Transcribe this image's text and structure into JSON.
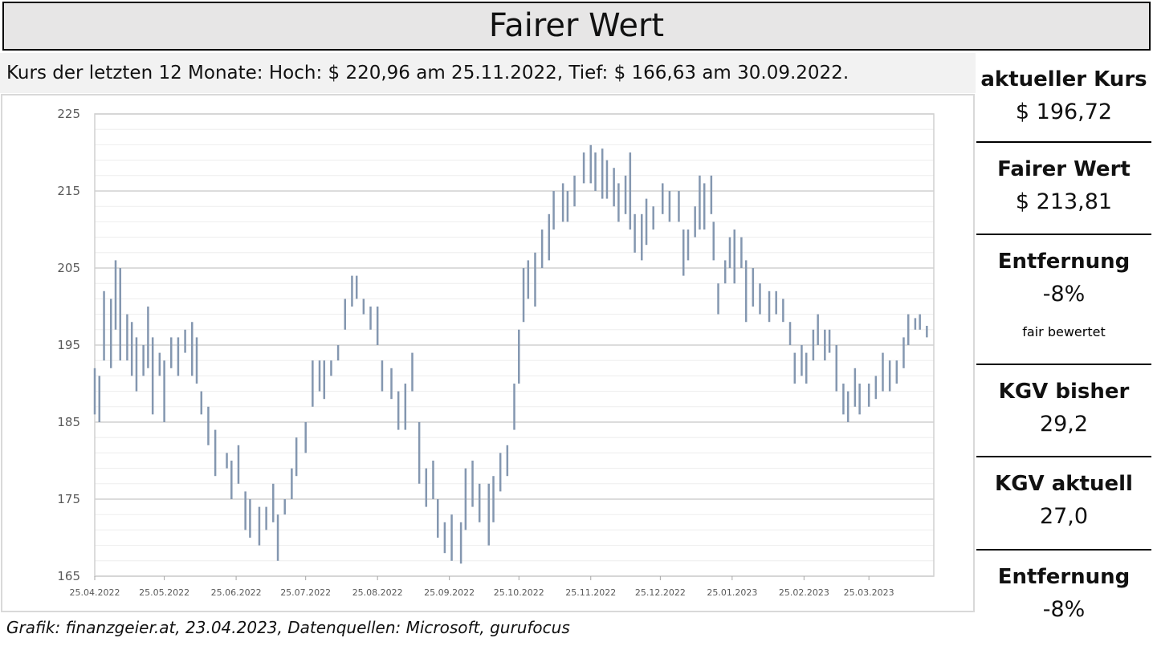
{
  "header": {
    "title": "Fairer Wert"
  },
  "chart_data": {
    "type": "range_bar",
    "subtitle": "Kurs der letzten 12 Monate: Hoch: $ 220,96 am 25.11.2022, Tief: $ 166,63 am 30.09.2022.",
    "caption": "Grafik: finanzgeier.at, 23.04.2023, Datenquellen: Microsoft, gurufocus",
    "color": "#8497b0",
    "x": [
      "25.04.2022",
      "27.04.2022",
      "29.04.2022",
      "02.05.2022",
      "04.05.2022",
      "06.05.2022",
      "09.05.2022",
      "11.05.2022",
      "13.05.2022",
      "16.05.2022",
      "18.05.2022",
      "20.05.2022",
      "23.05.2022",
      "25.05.2022",
      "28.05.2022",
      "31.05.2022",
      "03.06.2022",
      "06.06.2022",
      "08.06.2022",
      "10.06.2022",
      "13.06.2022",
      "16.06.2022",
      "21.06.2022",
      "23.06.2022",
      "26.06.2022",
      "29.06.2022",
      "01.07.2022",
      "05.07.2022",
      "08.07.2022",
      "11.07.2022",
      "13.07.2022",
      "16.07.2022",
      "19.07.2022",
      "21.07.2022",
      "25.07.2022",
      "28.07.2022",
      "31.07.2022",
      "02.08.2022",
      "05.08.2022",
      "08.08.2022",
      "11.08.2022",
      "14.08.2022",
      "16.08.2022",
      "19.08.2022",
      "22.08.2022",
      "25.08.2022",
      "27.08.2022",
      "31.08.2022",
      "03.09.2022",
      "06.09.2022",
      "09.09.2022",
      "12.09.2022",
      "15.09.2022",
      "18.09.2022",
      "20.09.2022",
      "23.09.2022",
      "26.09.2022",
      "30.09.2022",
      "02.10.2022",
      "05.10.2022",
      "08.10.2022",
      "12.10.2022",
      "14.10.2022",
      "17.10.2022",
      "20.10.2022",
      "23.10.2022",
      "25.10.2022",
      "27.10.2022",
      "29.10.2022",
      "01.11.2022",
      "04.11.2022",
      "07.11.2022",
      "09.11.2022",
      "13.11.2022",
      "15.11.2022",
      "18.11.2022",
      "22.11.2022",
      "25.11.2022",
      "27.11.2022",
      "30.11.2022",
      "02.12.2022",
      "05.12.2022",
      "07.12.2022",
      "10.12.2022",
      "12.12.2022",
      "14.12.2022",
      "17.12.2022",
      "19.12.2022",
      "22.12.2022",
      "26.12.2022",
      "29.12.2022",
      "02.01.2023",
      "04.01.2023",
      "06.01.2023",
      "09.01.2023",
      "11.01.2023",
      "13.01.2023",
      "16.01.2023",
      "17.01.2023",
      "19.01.2023",
      "22.01.2023",
      "24.01.2023",
      "26.01.2023",
      "29.01.2023",
      "31.01.2023",
      "03.02.2023",
      "06.02.2023",
      "10.02.2023",
      "13.02.2023",
      "16.02.2023",
      "19.02.2023",
      "21.02.2023",
      "24.02.2023",
      "26.02.2023",
      "01.03.2023",
      "03.03.2023",
      "06.03.2023",
      "08.03.2023",
      "11.03.2023",
      "14.03.2023",
      "16.03.2023",
      "19.03.2023",
      "21.03.2023",
      "25.03.2023",
      "28.03.2023",
      "31.03.2023",
      "03.04.2023",
      "06.04.2023",
      "09.04.2023",
      "11.04.2023",
      "14.04.2023",
      "16.04.2023",
      "19.04.2023"
    ],
    "low": [
      186,
      185,
      193,
      192,
      197,
      193,
      193,
      191,
      189,
      191,
      192,
      186,
      191,
      185,
      192,
      191,
      194,
      191,
      190,
      186,
      182,
      178,
      179,
      175,
      177,
      171,
      170,
      169,
      171,
      172,
      167,
      173,
      175,
      178,
      181,
      187,
      189,
      188,
      191,
      193,
      197,
      200,
      201,
      199,
      197,
      195,
      189,
      188,
      184,
      184,
      189,
      177,
      174,
      175,
      170,
      168,
      167,
      166.63,
      171,
      174,
      172,
      169,
      172,
      176,
      178,
      184,
      190,
      198,
      201,
      200,
      205,
      206,
      210,
      211,
      211,
      213,
      216,
      216,
      215,
      214,
      214,
      213,
      211,
      212,
      210,
      207,
      206,
      208,
      210,
      212,
      211,
      211,
      204,
      206,
      209,
      210,
      210,
      212,
      206,
      199,
      203,
      205,
      203,
      205,
      198,
      200,
      199,
      198,
      199,
      198,
      195,
      190,
      191,
      190,
      193,
      195,
      193,
      194,
      189,
      186,
      185,
      187,
      186,
      187,
      188,
      189,
      189,
      190,
      192,
      195,
      197,
      197,
      196
    ],
    "high": [
      192,
      191,
      202,
      201,
      206,
      205,
      199,
      198,
      196,
      195,
      200,
      196,
      194,
      193,
      196,
      196,
      197,
      198,
      196,
      189,
      187,
      184,
      181,
      180,
      182,
      176,
      175,
      174,
      174,
      177,
      173,
      175,
      179,
      183,
      185,
      193,
      193,
      193,
      193,
      195,
      201,
      204,
      204,
      201,
      200,
      200,
      193,
      192,
      189,
      190,
      194,
      185,
      179,
      180,
      175,
      172,
      173,
      172,
      179,
      180,
      177,
      177,
      178,
      181,
      182,
      190,
      197,
      205,
      206,
      207,
      210,
      212,
      215,
      216,
      215,
      217,
      220,
      220.96,
      220,
      220.5,
      219,
      218,
      216,
      217,
      220,
      212,
      212,
      214,
      213,
      216,
      215,
      215,
      210,
      210,
      213,
      217,
      216,
      217,
      211,
      203,
      206,
      209,
      210,
      209,
      206,
      205,
      203,
      202,
      202,
      201,
      198,
      194,
      195,
      194,
      197,
      199,
      197,
      197,
      195,
      190,
      189,
      192,
      190,
      190,
      191,
      194,
      193,
      193,
      196,
      199,
      198.5,
      199,
      197.5
    ],
    "xlim": [
      "25.04.2022",
      "22.04.2023"
    ],
    "xticks": [
      "25.04.2022",
      "25.05.2022",
      "25.06.2022",
      "25.07.2022",
      "25.08.2022",
      "25.09.2022",
      "25.10.2022",
      "25.11.2022",
      "25.12.2022",
      "25.01.2023",
      "25.02.2023",
      "25.03.2023"
    ],
    "ylim": [
      165,
      225
    ],
    "yticks": [
      165,
      175,
      185,
      195,
      205,
      215,
      225
    ],
    "yminorticks": [
      167,
      169,
      171,
      173,
      177,
      179,
      181,
      183,
      187,
      189,
      191,
      193,
      197,
      199,
      201,
      203,
      207,
      209,
      211,
      213,
      217,
      219,
      221,
      223
    ],
    "grid": true
  },
  "panel": [
    {
      "label": "aktueller Kurs",
      "value": "$ 196,72"
    },
    {
      "label": "Fairer Wert",
      "value": "$ 213,81"
    },
    {
      "label": "Entfernung",
      "value": "-8%",
      "note": "fair bewertet"
    },
    {
      "label": "KGV bisher",
      "value": "29,2"
    },
    {
      "label": "KGV aktuell",
      "value": "27,0"
    },
    {
      "label": "Entfernung",
      "value": "-8%"
    }
  ]
}
